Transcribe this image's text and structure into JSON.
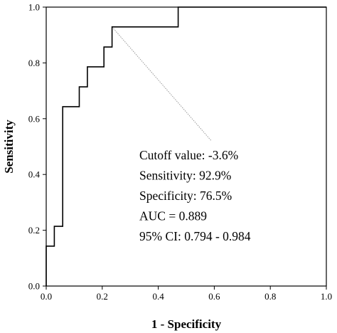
{
  "chart_data": {
    "type": "line",
    "xlabel": "1 - Specificity",
    "ylabel": "Sensitivity",
    "xlim": [
      0,
      1
    ],
    "ylim": [
      0,
      1
    ],
    "xticks": [
      "0.0",
      "0.2",
      "0.4",
      "0.6",
      "0.8",
      "1.0"
    ],
    "yticks": [
      "0.0",
      "0.2",
      "0.4",
      "0.6",
      "0.8",
      "1.0"
    ],
    "grid": false,
    "series": [
      {
        "color": "#000000",
        "style": "step",
        "points": [
          [
            0.0,
            0.0
          ],
          [
            0.0,
            0.143
          ],
          [
            0.029,
            0.143
          ],
          [
            0.029,
            0.214
          ],
          [
            0.059,
            0.214
          ],
          [
            0.059,
            0.643
          ],
          [
            0.118,
            0.643
          ],
          [
            0.118,
            0.714
          ],
          [
            0.147,
            0.714
          ],
          [
            0.147,
            0.786
          ],
          [
            0.206,
            0.786
          ],
          [
            0.206,
            0.857
          ],
          [
            0.235,
            0.857
          ],
          [
            0.235,
            0.929
          ],
          [
            0.471,
            0.929
          ],
          [
            0.471,
            1.0
          ],
          [
            1.0,
            1.0
          ]
        ]
      }
    ],
    "leader_line": {
      "from": [
        0.235,
        0.929
      ],
      "to": [
        0.59,
        0.52
      ],
      "color": "#999999"
    },
    "annotations": [
      "Cutoff value: -3.6%",
      "Sensitivity: 92.9%",
      "Specificity: 76.5%",
      "AUC = 0.889",
      "95% CI: 0.794 - 0.984"
    ]
  }
}
